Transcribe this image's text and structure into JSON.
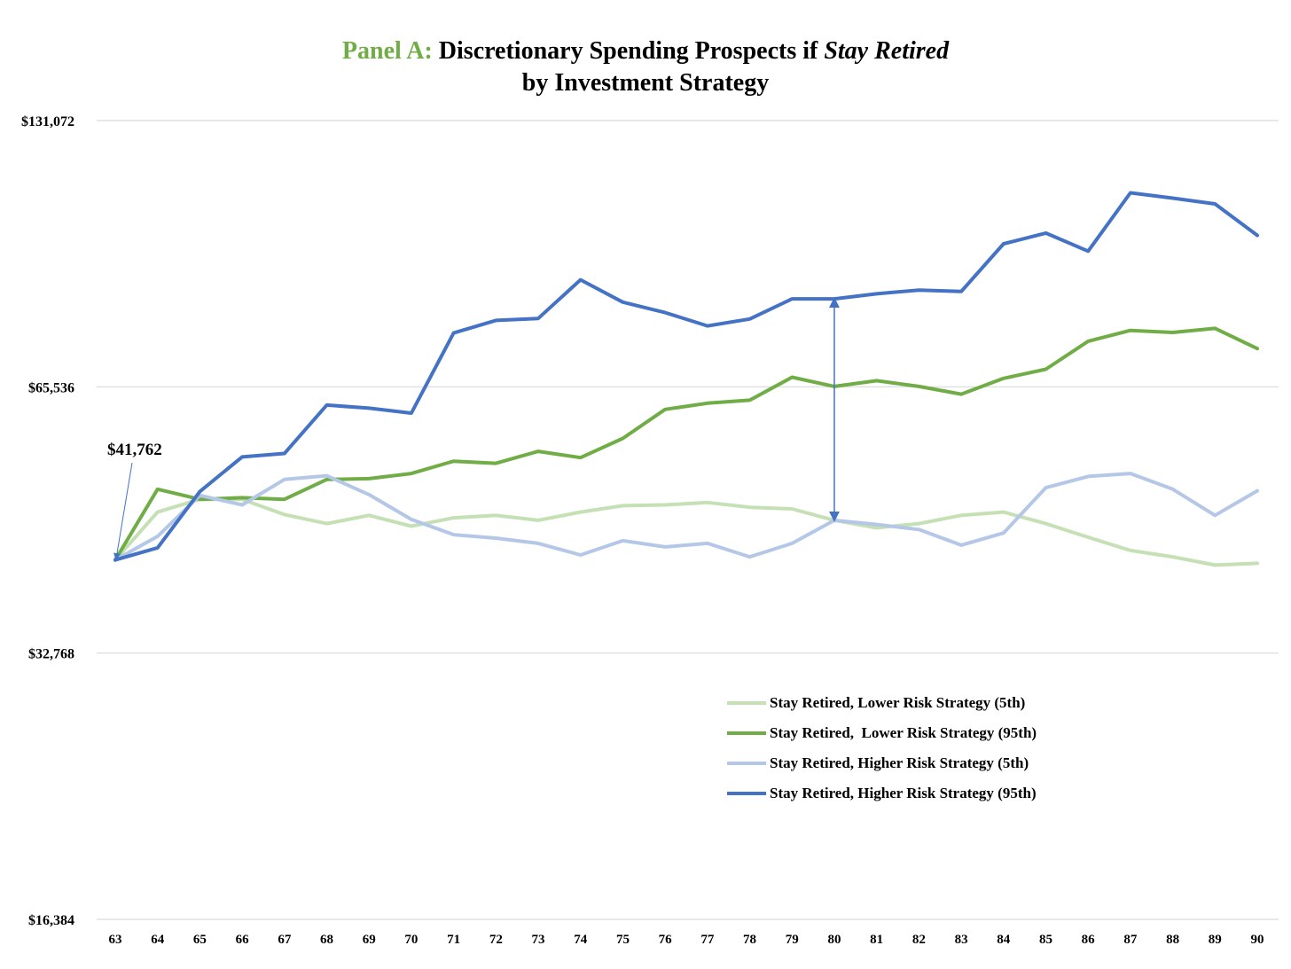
{
  "title": {
    "panel": "Panel A:",
    "pre": " Discretionary Spending Prospects if ",
    "italic": "Stay Retired",
    "line2": "by Investment Strategy"
  },
  "annotation": {
    "start_value": "$41,762"
  },
  "chart_data": {
    "type": "line",
    "title": "Panel A: Discretionary Spending Prospects if Stay Retired by Investment Strategy",
    "xlabel": "",
    "ylabel": "",
    "y_scale": "log2",
    "ylim": [
      16384,
      131072
    ],
    "y_ticks": [
      16384,
      32768,
      65536,
      131072
    ],
    "y_tick_labels": [
      "$16,384",
      "$32,768",
      "$65,536",
      "$131,072"
    ],
    "x": [
      63,
      64,
      65,
      66,
      67,
      68,
      69,
      70,
      71,
      72,
      73,
      74,
      75,
      76,
      77,
      78,
      79,
      80,
      81,
      82,
      83,
      84,
      85,
      86,
      87,
      88,
      89,
      90
    ],
    "grid": "horizontal",
    "legend_position": "bottom-right",
    "series": [
      {
        "name": "Stay Retired, Lower Risk Strategy (5th)",
        "color": "#c5e0b4",
        "values": [
          41762,
          47300,
          48900,
          48900,
          47000,
          45900,
          46900,
          45600,
          46600,
          46900,
          46300,
          47300,
          48100,
          48200,
          48500,
          47900,
          47700,
          46300,
          45400,
          45900,
          46900,
          47300,
          45900,
          44300,
          42800,
          42100,
          41200,
          41400
        ]
      },
      {
        "name": "Stay Retired,  Lower Risk Strategy (95th)",
        "color": "#70ad47",
        "values": [
          41762,
          50200,
          48900,
          49100,
          48900,
          51500,
          51600,
          52300,
          54000,
          53700,
          55400,
          54500,
          57300,
          61800,
          62800,
          63300,
          67200,
          65600,
          66600,
          65600,
          64300,
          67000,
          68600,
          73800,
          75900,
          75500,
          76300,
          72400
        ]
      },
      {
        "name": "Stay Retired, Higher Risk Strategy (5th)",
        "color": "#b4c7e7",
        "values": [
          41762,
          44400,
          49400,
          48200,
          51500,
          52000,
          49500,
          46400,
          44600,
          44200,
          43600,
          42300,
          43900,
          43200,
          43600,
          42100,
          43600,
          46300,
          45800,
          45200,
          43400,
          44800,
          50400,
          51900,
          52300,
          50200,
          46900,
          50000
        ]
      },
      {
        "name": "Stay Retired, Higher Risk Strategy (95th)",
        "color": "#4472c4",
        "values": [
          41762,
          43100,
          49900,
          54600,
          55100,
          62500,
          62000,
          61200,
          75400,
          77900,
          78300,
          86600,
          81700,
          79500,
          76800,
          78200,
          82400,
          82400,
          83500,
          84300,
          84000,
          95100,
          97800,
          93300,
          108600,
          107100,
          105500,
          97200
        ]
      }
    ]
  }
}
